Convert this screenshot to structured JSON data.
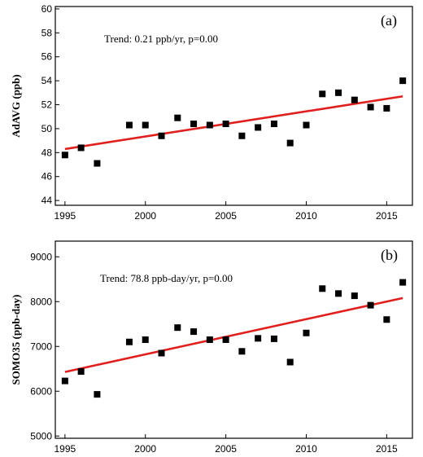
{
  "chart_data": [
    {
      "type": "scatter",
      "panel_label": "(a)",
      "ylabel": "AdAVG (ppb)",
      "annotation": "Trend: 0.21 ppb/yr, p=0.00",
      "xlim": [
        1994.4,
        2016.6
      ],
      "ylim": [
        43.6,
        60.2
      ],
      "xticks": [
        1995,
        2000,
        2005,
        2010,
        2015
      ],
      "yticks": [
        44,
        46,
        48,
        50,
        52,
        54,
        56,
        58,
        60
      ],
      "x": [
        1995,
        1996,
        1997,
        1999,
        2000,
        2001,
        2002,
        2003,
        2004,
        2005,
        2006,
        2007,
        2008,
        2009,
        2010,
        2011,
        2012,
        2013,
        2014,
        2015,
        2016
      ],
      "y": [
        47.8,
        48.4,
        47.1,
        50.3,
        50.3,
        49.4,
        50.9,
        50.4,
        50.3,
        50.4,
        49.4,
        50.1,
        50.4,
        48.8,
        50.3,
        52.9,
        53.0,
        52.4,
        51.8,
        51.7,
        54.0
      ],
      "trend_line": {
        "x": [
          1995,
          2016
        ],
        "y": [
          48.3,
          52.7
        ]
      },
      "colors": {
        "points": "#000000",
        "trend": "#e0201e"
      }
    },
    {
      "type": "scatter",
      "panel_label": "(b)",
      "ylabel": "SOMO35 (ppb-day)",
      "annotation": "Trend: 78.8 ppb-day/yr, p=0.00",
      "xlim": [
        1994.4,
        2016.6
      ],
      "ylim": [
        4950,
        9350
      ],
      "xticks": [
        1995,
        2000,
        2005,
        2010,
        2015
      ],
      "yticks": [
        5000,
        6000,
        7000,
        8000,
        9000
      ],
      "x": [
        1995,
        1996,
        1997,
        1999,
        2000,
        2001,
        2002,
        2003,
        2004,
        2005,
        2006,
        2007,
        2008,
        2009,
        2010,
        2011,
        2012,
        2013,
        2014,
        2015,
        2016
      ],
      "y": [
        6230,
        6440,
        5930,
        7100,
        7150,
        6850,
        7420,
        7330,
        7150,
        7150,
        6890,
        7180,
        7170,
        6650,
        7300,
        8290,
        8180,
        8130,
        7920,
        7600,
        8430
      ],
      "trend_line": {
        "x": [
          1995,
          2016
        ],
        "y": [
          6430,
          8080
        ]
      },
      "colors": {
        "points": "#000000",
        "trend": "#e0201e"
      }
    }
  ]
}
